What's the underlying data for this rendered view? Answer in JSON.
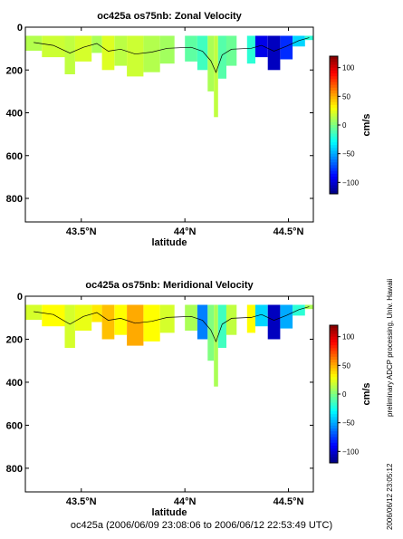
{
  "colors": {
    "colormap": [
      "#00007f",
      "#0000ff",
      "#0080ff",
      "#00ffff",
      "#80ff80",
      "#ffff00",
      "#ff8000",
      "#ff0000",
      "#7f0000"
    ],
    "contour": "#000000",
    "axes": "#000000"
  },
  "chart_data": [
    {
      "type": "heatmap",
      "title": "oc425a os75nb: Zonal Velocity",
      "xlabel": "latitude",
      "ylabel": "",
      "x_ticks": [
        "43.5°N",
        "44°N",
        "44.5°N"
      ],
      "x_tick_values": [
        43.5,
        44.0,
        44.5
      ],
      "xlim": [
        43.23,
        44.62
      ],
      "y_ticks": [
        "0",
        "200",
        "400",
        "600",
        "800"
      ],
      "y_tick_values": [
        0,
        200,
        400,
        600,
        800
      ],
      "ylim": [
        910,
        0
      ],
      "colorbar_label": "cm/s",
      "colorbar_ticks": [
        "100",
        "50",
        "0",
        "−50",
        "−100"
      ],
      "colorbar_tick_values": [
        100,
        50,
        0,
        -50,
        -100
      ],
      "colorbar_range": [
        -120,
        120
      ],
      "segments": [
        {
          "x": [
            43.23,
            43.31
          ],
          "bottom": 110,
          "value": 12
        },
        {
          "x": [
            43.31,
            43.42
          ],
          "bottom": 140,
          "value": 18
        },
        {
          "x": [
            43.42,
            43.47
          ],
          "bottom": 220,
          "value": 15
        },
        {
          "x": [
            43.47,
            43.55
          ],
          "bottom": 160,
          "value": 20
        },
        {
          "x": [
            43.55,
            43.6
          ],
          "bottom": 120,
          "value": 10
        },
        {
          "x": [
            43.6,
            43.66
          ],
          "bottom": 200,
          "value": 22
        },
        {
          "x": [
            43.66,
            43.72
          ],
          "bottom": 180,
          "value": 14
        },
        {
          "x": [
            43.72,
            43.8
          ],
          "bottom": 230,
          "value": 18
        },
        {
          "x": [
            43.8,
            43.88
          ],
          "bottom": 210,
          "value": 12
        },
        {
          "x": [
            43.88,
            43.95
          ],
          "bottom": 170,
          "value": 8
        },
        {
          "x": [
            44.0,
            44.06
          ],
          "bottom": 160,
          "value": -8
        },
        {
          "x": [
            44.06,
            44.11
          ],
          "bottom": 200,
          "value": -15
        },
        {
          "x": [
            44.11,
            44.14
          ],
          "bottom": 300,
          "value": 10
        },
        {
          "x": [
            44.14,
            44.16
          ],
          "bottom": 420,
          "value": 15
        },
        {
          "x": [
            44.16,
            44.2
          ],
          "bottom": 240,
          "value": -10
        },
        {
          "x": [
            44.2,
            44.25
          ],
          "bottom": 180,
          "value": -5
        },
        {
          "x": [
            44.3,
            44.34
          ],
          "bottom": 170,
          "value": -20
        },
        {
          "x": [
            44.34,
            44.4
          ],
          "bottom": 140,
          "value": -95
        },
        {
          "x": [
            44.4,
            44.46
          ],
          "bottom": 200,
          "value": -105
        },
        {
          "x": [
            44.46,
            44.52
          ],
          "bottom": 150,
          "value": -80
        },
        {
          "x": [
            44.52,
            44.58
          ],
          "bottom": 90,
          "value": -40
        },
        {
          "x": [
            44.58,
            44.62
          ],
          "bottom": 60,
          "value": -20
        }
      ]
    },
    {
      "type": "heatmap",
      "title": "oc425a os75nb: Meridional Velocity",
      "xlabel": "latitude",
      "ylabel": "",
      "x_ticks": [
        "43.5°N",
        "44°N",
        "44.5°N"
      ],
      "x_tick_values": [
        43.5,
        44.0,
        44.5
      ],
      "xlim": [
        43.23,
        44.62
      ],
      "y_ticks": [
        "0",
        "200",
        "400",
        "600",
        "800"
      ],
      "y_tick_values": [
        0,
        200,
        400,
        600,
        800
      ],
      "ylim": [
        910,
        0
      ],
      "colorbar_label": "cm/s",
      "colorbar_ticks": [
        "100",
        "50",
        "0",
        "−50",
        "−100"
      ],
      "colorbar_tick_values": [
        100,
        50,
        0,
        -50,
        -100
      ],
      "colorbar_range": [
        -120,
        120
      ],
      "segments": [
        {
          "x": [
            43.23,
            43.31
          ],
          "bottom": 110,
          "value": 20
        },
        {
          "x": [
            43.31,
            43.42
          ],
          "bottom": 140,
          "value": 30
        },
        {
          "x": [
            43.42,
            43.47
          ],
          "bottom": 240,
          "value": 20
        },
        {
          "x": [
            43.47,
            43.55
          ],
          "bottom": 160,
          "value": 25
        },
        {
          "x": [
            43.55,
            43.6
          ],
          "bottom": 120,
          "value": 35
        },
        {
          "x": [
            43.6,
            43.66
          ],
          "bottom": 200,
          "value": 45
        },
        {
          "x": [
            43.66,
            43.72
          ],
          "bottom": 180,
          "value": 30
        },
        {
          "x": [
            43.72,
            43.8
          ],
          "bottom": 230,
          "value": 50
        },
        {
          "x": [
            43.8,
            43.88
          ],
          "bottom": 210,
          "value": 30
        },
        {
          "x": [
            43.88,
            43.95
          ],
          "bottom": 170,
          "value": 20
        },
        {
          "x": [
            44.0,
            44.06
          ],
          "bottom": 160,
          "value": 10
        },
        {
          "x": [
            44.06,
            44.11
          ],
          "bottom": 200,
          "value": -60
        },
        {
          "x": [
            44.11,
            44.14
          ],
          "bottom": 300,
          "value": 0
        },
        {
          "x": [
            44.14,
            44.16
          ],
          "bottom": 420,
          "value": 10
        },
        {
          "x": [
            44.16,
            44.2
          ],
          "bottom": 240,
          "value": -15
        },
        {
          "x": [
            44.2,
            44.25
          ],
          "bottom": 180,
          "value": 15
        },
        {
          "x": [
            44.3,
            44.34
          ],
          "bottom": 170,
          "value": 30
        },
        {
          "x": [
            44.34,
            44.4
          ],
          "bottom": 140,
          "value": -40
        },
        {
          "x": [
            44.4,
            44.46
          ],
          "bottom": 200,
          "value": -105
        },
        {
          "x": [
            44.46,
            44.52
          ],
          "bottom": 150,
          "value": -50
        },
        {
          "x": [
            44.52,
            44.58
          ],
          "bottom": 90,
          "value": -20
        },
        {
          "x": [
            44.58,
            44.62
          ],
          "bottom": 60,
          "value": 10
        }
      ]
    }
  ],
  "side_text": {
    "processing_note": "preliminary ADCP processing,  Univ. Hawaii",
    "timestamp": "2006/06/12 23:05:12"
  },
  "footer": {
    "date_range": "oc425a (2006/06/09 23:08:06 to 2006/06/12 22:53:49 UTC)"
  }
}
